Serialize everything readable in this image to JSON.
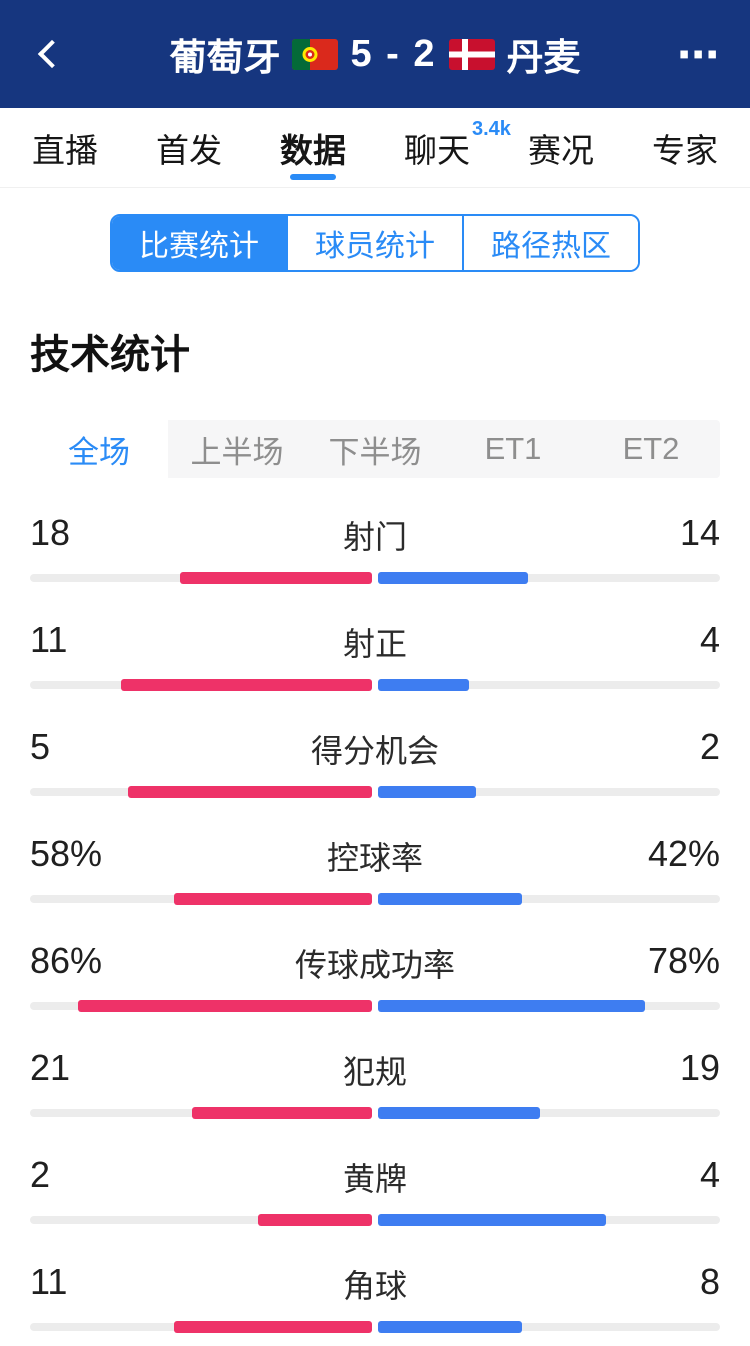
{
  "header": {
    "home_team": "葡萄牙",
    "away_team": "丹麦",
    "score": "5 - 2",
    "more_icon": "⋯"
  },
  "nav_tabs": [
    {
      "label": "直播"
    },
    {
      "label": "首发"
    },
    {
      "label": "数据",
      "active": true
    },
    {
      "label": "聊天",
      "badge": "3.4k"
    },
    {
      "label": "赛况"
    },
    {
      "label": "专家"
    }
  ],
  "sub_tabs": [
    {
      "label": "比赛统计",
      "active": true
    },
    {
      "label": "球员统计"
    },
    {
      "label": "路径热区"
    }
  ],
  "section_title": "技术统计",
  "period_tabs": [
    {
      "label": "全场",
      "active": true
    },
    {
      "label": "上半场"
    },
    {
      "label": "下半场"
    },
    {
      "label": "ET1"
    },
    {
      "label": "ET2"
    }
  ],
  "stats": [
    {
      "label": "射门",
      "home": "18",
      "away": "14"
    },
    {
      "label": "射正",
      "home": "11",
      "away": "4"
    },
    {
      "label": "得分机会",
      "home": "5",
      "away": "2"
    },
    {
      "label": "控球率",
      "home": "58%",
      "away": "42%"
    },
    {
      "label": "传球成功率",
      "home": "86%",
      "away": "78%"
    },
    {
      "label": "犯规",
      "home": "21",
      "away": "19"
    },
    {
      "label": "黄牌",
      "home": "2",
      "away": "4"
    },
    {
      "label": "角球",
      "home": "11",
      "away": "8"
    }
  ],
  "colors": {
    "header_bg": "#16367F",
    "accent": "#2A8BF6",
    "home_bar": "#EE3268",
    "away_bar": "#3E7DF1",
    "track": "#ECECEC"
  }
}
